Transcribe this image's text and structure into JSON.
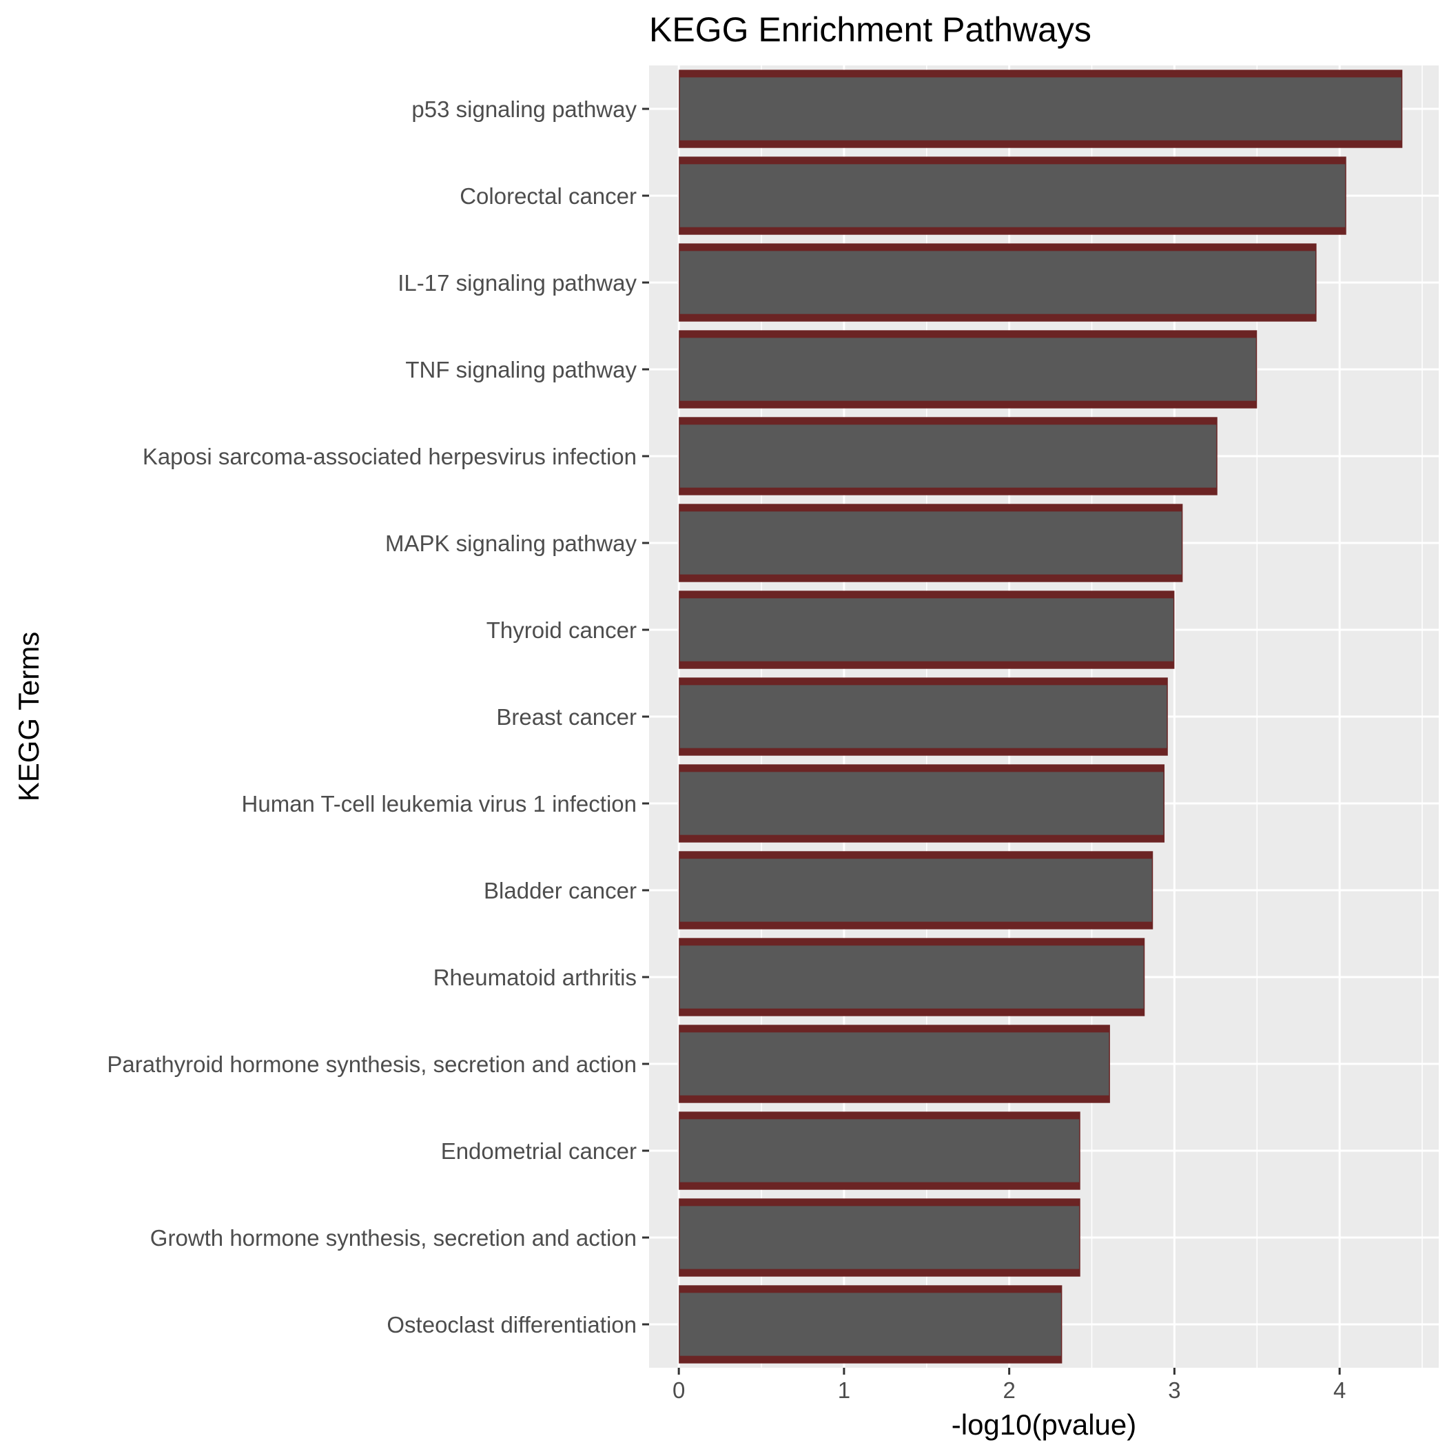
{
  "chart_data": {
    "type": "bar",
    "orientation": "horizontal",
    "title": "KEGG Enrichment Pathways",
    "xlabel": "-log10(pvalue)",
    "ylabel": "KEGG Terms",
    "xlim": [
      -0.18,
      4.6
    ],
    "xticks": [
      "0",
      "1",
      "2",
      "3",
      "4"
    ],
    "grid": true,
    "categories": [
      "p53 signaling pathway",
      "Colorectal cancer",
      "IL-17 signaling pathway",
      "TNF signaling pathway",
      "Kaposi sarcoma-associated herpesvirus infection",
      "MAPK signaling pathway",
      "Thyroid cancer",
      "Breast cancer",
      "Human T-cell leukemia virus 1 infection",
      "Bladder cancer",
      "Rheumatoid arthritis",
      "Parathyroid hormone synthesis, secretion and action",
      "Endometrial cancer",
      "Growth hormone synthesis, secretion and action",
      "Osteoclast differentiation"
    ],
    "values": [
      4.38,
      4.04,
      3.86,
      3.5,
      3.26,
      3.05,
      3.0,
      2.96,
      2.94,
      2.87,
      2.82,
      2.61,
      2.43,
      2.43,
      2.32
    ],
    "colors": {
      "panel": "#ebebeb",
      "grid": "#ffffff",
      "bar_fill": "#595959",
      "bar_outline": "#6b2424",
      "tick": "#333333"
    }
  }
}
